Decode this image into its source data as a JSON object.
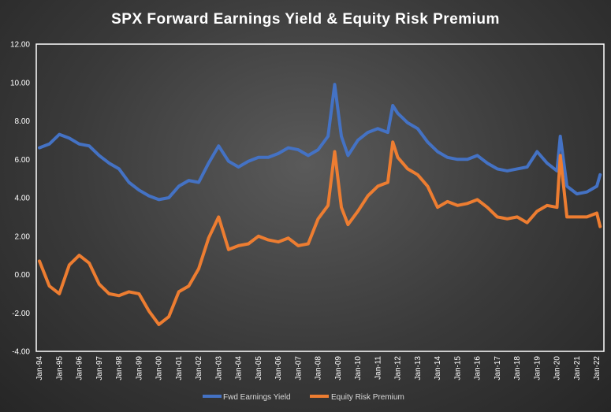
{
  "chart_data": {
    "type": "line",
    "title": "SPX Forward Earnings Yield & Equity Risk Premium",
    "xlabel": "",
    "ylabel": "",
    "ylim": [
      -4,
      12
    ],
    "y_ticks": [
      "12.00",
      "10.00",
      "8.00",
      "6.00",
      "4.00",
      "2.00",
      "0.00",
      "-2.00",
      "-4.00"
    ],
    "x_ticks": [
      "Jan-94",
      "Jan-95",
      "Jan-96",
      "Jan-97",
      "Jan-98",
      "Jan-99",
      "Jan-00",
      "Jan-01",
      "Jan-02",
      "Jan-03",
      "Jan-04",
      "Jan-05",
      "Jan-06",
      "Jan-07",
      "Jan-08",
      "Jan-09",
      "Jan-10",
      "Jan-11",
      "Jan-12",
      "Jan-13",
      "Jan-14",
      "Jan-15",
      "Jan-16",
      "Jan-17",
      "Jan-18",
      "Jan-19",
      "Jan-20",
      "Jan-21",
      "Jan-22"
    ],
    "x": [
      "1994-01",
      "1994-07",
      "1995-01",
      "1995-07",
      "1996-01",
      "1996-07",
      "1997-01",
      "1997-07",
      "1998-01",
      "1998-07",
      "1999-01",
      "1999-07",
      "2000-01",
      "2000-07",
      "2001-01",
      "2001-07",
      "2002-01",
      "2002-07",
      "2003-01",
      "2003-07",
      "2004-01",
      "2004-07",
      "2005-01",
      "2005-07",
      "2006-01",
      "2006-07",
      "2007-01",
      "2007-07",
      "2008-01",
      "2008-07",
      "2008-11",
      "2009-03",
      "2009-07",
      "2010-01",
      "2010-07",
      "2011-01",
      "2011-07",
      "2011-10",
      "2012-01",
      "2012-07",
      "2013-01",
      "2013-07",
      "2014-01",
      "2014-07",
      "2015-01",
      "2015-07",
      "2016-01",
      "2016-07",
      "2017-01",
      "2017-07",
      "2018-01",
      "2018-07",
      "2019-01",
      "2019-07",
      "2020-01",
      "2020-03",
      "2020-07",
      "2021-01",
      "2021-07",
      "2022-01",
      "2022-03"
    ],
    "series": [
      {
        "name": "Fwd Earnings Yield",
        "color": "#4472c4",
        "values": [
          6.6,
          6.8,
          7.3,
          7.1,
          6.8,
          6.7,
          6.2,
          5.8,
          5.5,
          4.8,
          4.4,
          4.1,
          3.9,
          4.0,
          4.6,
          4.9,
          4.8,
          5.8,
          6.7,
          5.9,
          5.6,
          5.9,
          6.1,
          6.1,
          6.3,
          6.6,
          6.5,
          6.2,
          6.5,
          7.2,
          9.9,
          7.2,
          6.2,
          7.0,
          7.4,
          7.6,
          7.4,
          8.8,
          8.4,
          7.9,
          7.6,
          6.9,
          6.4,
          6.1,
          6.0,
          6.0,
          6.2,
          5.8,
          5.5,
          5.4,
          5.5,
          5.6,
          6.4,
          5.8,
          5.4,
          7.2,
          4.6,
          4.2,
          4.3,
          4.6,
          5.2
        ]
      },
      {
        "name": "Equity Risk Premium",
        "color": "#ed7d31",
        "values": [
          0.7,
          -0.6,
          -1.0,
          0.5,
          1.0,
          0.6,
          -0.5,
          -1.0,
          -1.1,
          -0.9,
          -1.0,
          -1.9,
          -2.6,
          -2.2,
          -0.9,
          -0.6,
          0.3,
          1.9,
          3.0,
          1.3,
          1.5,
          1.6,
          2.0,
          1.8,
          1.7,
          1.9,
          1.5,
          1.6,
          2.9,
          3.6,
          6.4,
          3.5,
          2.6,
          3.3,
          4.1,
          4.6,
          4.8,
          6.9,
          6.1,
          5.5,
          5.2,
          4.6,
          3.5,
          3.8,
          3.6,
          3.7,
          3.9,
          3.5,
          3.0,
          2.9,
          3.0,
          2.7,
          3.3,
          3.6,
          3.5,
          6.2,
          3.0,
          3.0,
          3.0,
          3.2,
          2.5
        ]
      }
    ],
    "legend": "bottom",
    "grid": false
  }
}
